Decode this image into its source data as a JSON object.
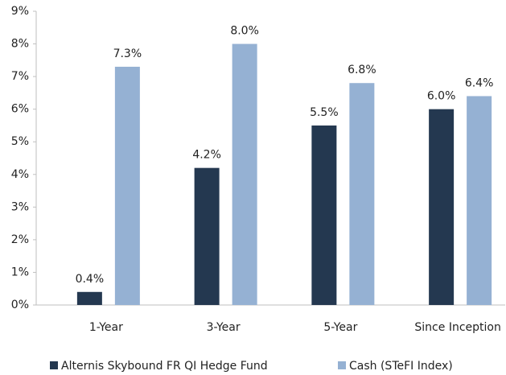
{
  "chart_data": {
    "type": "bar",
    "categories": [
      "1-Year",
      "3-Year",
      "5-Year",
      "Since Inception"
    ],
    "series": [
      {
        "name": "Alternis Skybound FR QI Hedge Fund",
        "color": "#243850",
        "values": [
          0.4,
          4.2,
          5.5,
          6.0
        ],
        "value_labels": [
          "0.4%",
          "4.2%",
          "5.5%",
          "6.0%"
        ]
      },
      {
        "name": "Cash (STeFI Index)",
        "color": "#95b1d3",
        "values": [
          7.3,
          8.0,
          6.8,
          6.4
        ],
        "value_labels": [
          "7.3%",
          "8.0%",
          "6.8%",
          "6.4%"
        ]
      }
    ],
    "ylim": [
      0,
      9
    ],
    "yticks": [
      {
        "value": 0,
        "label": "0%"
      },
      {
        "value": 1,
        "label": "1%"
      },
      {
        "value": 2,
        "label": "2%"
      },
      {
        "value": 3,
        "label": "3%"
      },
      {
        "value": 4,
        "label": "4%"
      },
      {
        "value": 5,
        "label": "5%"
      },
      {
        "value": 6,
        "label": "6%"
      },
      {
        "value": 7,
        "label": "7%"
      },
      {
        "value": 8,
        "label": "8%"
      },
      {
        "value": 9,
        "label": "9%"
      }
    ],
    "grid": false,
    "legend": "bottom"
  }
}
